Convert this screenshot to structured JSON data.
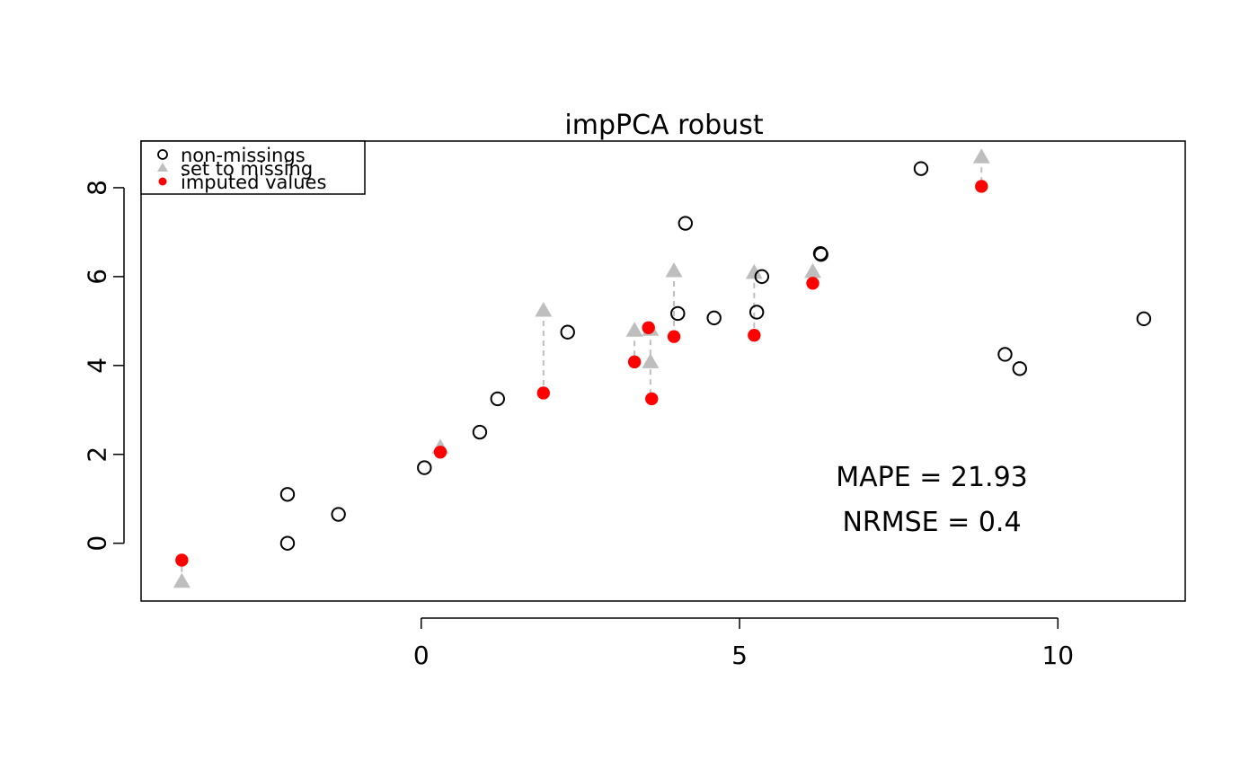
{
  "chart_data": {
    "type": "scatter",
    "title": "impPCA robust",
    "xlabel": "",
    "ylabel": "",
    "xlim": [
      -4.4,
      12
    ],
    "ylim": [
      -1.3,
      9.05
    ],
    "x_ticks": [
      0,
      5,
      10
    ],
    "y_ticks": [
      0,
      2,
      4,
      6,
      8
    ],
    "grid": false,
    "legend_position": "top-left",
    "legend": [
      {
        "label": "non-missings",
        "symbol": "open-circle",
        "color": "#000000"
      },
      {
        "label": "set to missing",
        "symbol": "triangle",
        "color": "#bebebe"
      },
      {
        "label": "imputed values",
        "symbol": "filled-circle",
        "color": "#ff0000"
      }
    ],
    "annotations": [
      "MAPE = 21.93",
      "NRMSE = 0.4"
    ],
    "series": [
      {
        "name": "non-missings",
        "points": [
          [
            -2.1,
            1.1
          ],
          [
            -2.1,
            0.0
          ],
          [
            -1.3,
            0.65
          ],
          [
            0.05,
            1.7
          ],
          [
            0.92,
            2.5
          ],
          [
            1.2,
            3.25
          ],
          [
            2.3,
            4.75
          ],
          [
            4.03,
            5.17
          ],
          [
            4.15,
            7.2
          ],
          [
            4.6,
            5.07
          ],
          [
            5.27,
            5.2
          ],
          [
            5.35,
            6.0
          ],
          [
            6.27,
            6.52
          ],
          [
            6.28,
            6.5
          ],
          [
            7.85,
            8.43
          ],
          [
            9.17,
            4.25
          ],
          [
            9.4,
            3.93
          ],
          [
            11.35,
            5.05
          ]
        ]
      },
      {
        "name": "set to missing",
        "points": [
          [
            -3.76,
            -0.87
          ],
          [
            0.3,
            2.15
          ],
          [
            1.92,
            5.23
          ],
          [
            3.35,
            4.78
          ],
          [
            3.6,
            4.8
          ],
          [
            3.6,
            4.07
          ],
          [
            3.97,
            6.12
          ],
          [
            5.23,
            6.08
          ],
          [
            6.15,
            6.1
          ],
          [
            8.8,
            8.68
          ]
        ]
      },
      {
        "name": "imputed values",
        "points": [
          [
            -3.76,
            -0.38
          ],
          [
            0.3,
            2.05
          ],
          [
            1.92,
            3.38
          ],
          [
            3.35,
            4.08
          ],
          [
            3.57,
            4.85
          ],
          [
            3.62,
            3.25
          ],
          [
            3.97,
            4.65
          ],
          [
            5.23,
            4.68
          ],
          [
            6.15,
            5.85
          ],
          [
            8.8,
            8.03
          ]
        ]
      }
    ],
    "connectors": [
      {
        "x": -3.76,
        "y_from": -0.87,
        "y_to": -0.38
      },
      {
        "x": 1.92,
        "y_from": 5.23,
        "y_to": 3.38
      },
      {
        "x": 3.35,
        "y_from": 4.78,
        "y_to": 4.08
      },
      {
        "x": 3.6,
        "y_from": 4.8,
        "y_to": 3.25
      },
      {
        "x": 3.97,
        "y_from": 6.12,
        "y_to": 4.65
      },
      {
        "x": 5.23,
        "y_from": 6.08,
        "y_to": 4.68
      },
      {
        "x": 6.15,
        "y_from": 6.1,
        "y_to": 5.85
      },
      {
        "x": 8.8,
        "y_from": 8.68,
        "y_to": 8.03
      }
    ],
    "colors": {
      "axis": "#000000",
      "observed": "#000000",
      "missing": "#bebebe",
      "imputed": "#ff0000",
      "connector": "#bebebe"
    }
  }
}
